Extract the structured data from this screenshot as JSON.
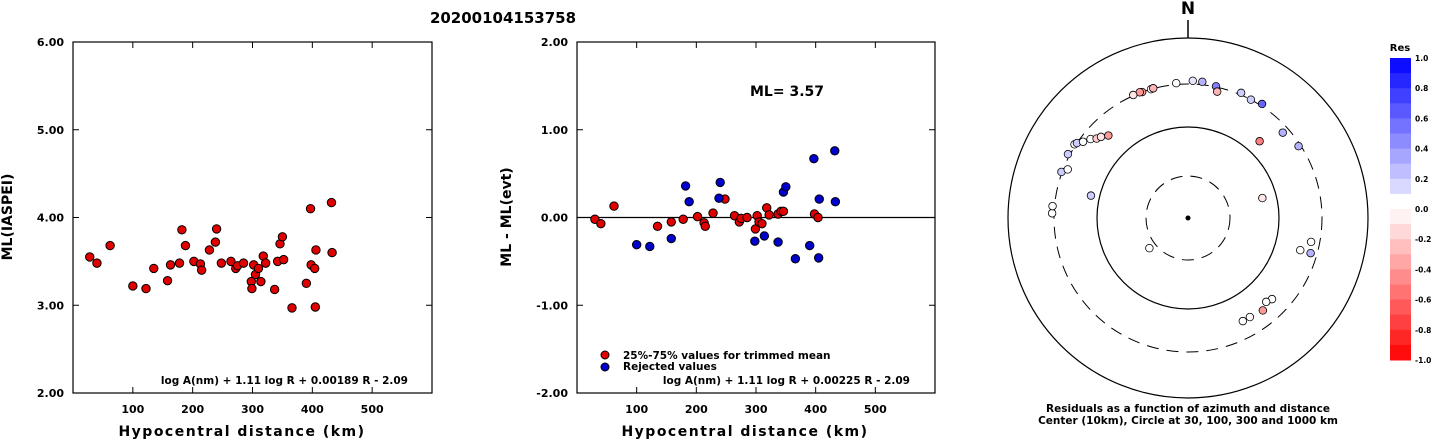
{
  "page_title": "20200104153758",
  "chart_data": [
    {
      "type": "scatter",
      "ylabel": "ML(IASPEI)",
      "xlabel": "Hypocentral distance (km)",
      "xlim": [
        0,
        600
      ],
      "ylim": [
        2.0,
        6.0
      ],
      "x_ticks": [
        "100",
        "200",
        "300",
        "400",
        "500"
      ],
      "y_ticks": [
        "2.00",
        "3.00",
        "4.00",
        "5.00",
        "6.00"
      ],
      "formula": "log A(nm) + 1.11 log R + 0.00189 R - 2.09",
      "series": [
        {
          "color": "#e00000",
          "points": [
            [
              28,
              3.55
            ],
            [
              40,
              3.48
            ],
            [
              62,
              3.68
            ],
            [
              100,
              3.22
            ],
            [
              122,
              3.19
            ],
            [
              135,
              3.42
            ],
            [
              158,
              3.28
            ],
            [
              163,
              3.46
            ],
            [
              178,
              3.48
            ],
            [
              182,
              3.86
            ],
            [
              188,
              3.68
            ],
            [
              202,
              3.5
            ],
            [
              213,
              3.47
            ],
            [
              215,
              3.4
            ],
            [
              228,
              3.63
            ],
            [
              238,
              3.72
            ],
            [
              240,
              3.87
            ],
            [
              248,
              3.48
            ],
            [
              264,
              3.5
            ],
            [
              272,
              3.42
            ],
            [
              275,
              3.45
            ],
            [
              285,
              3.48
            ],
            [
              298,
              3.27
            ],
            [
              299,
              3.19
            ],
            [
              302,
              3.46
            ],
            [
              305,
              3.35
            ],
            [
              310,
              3.42
            ],
            [
              314,
              3.27
            ],
            [
              318,
              3.56
            ],
            [
              322,
              3.48
            ],
            [
              337,
              3.18
            ],
            [
              342,
              3.5
            ],
            [
              346,
              3.7
            ],
            [
              350,
              3.78
            ],
            [
              352,
              3.52
            ],
            [
              366,
              2.97
            ],
            [
              390,
              3.25
            ],
            [
              397,
              4.1
            ],
            [
              398,
              3.46
            ],
            [
              404,
              3.42
            ],
            [
              405,
              2.98
            ],
            [
              406,
              3.63
            ],
            [
              432,
              4.17
            ],
            [
              433,
              3.6
            ]
          ]
        }
      ]
    },
    {
      "type": "scatter",
      "ylabel": "ML - ML(evt)",
      "xlabel": "Hypocentral distance (km)",
      "xlim": [
        0,
        600
      ],
      "ylim": [
        -2.0,
        2.0
      ],
      "x_ticks": [
        "100",
        "200",
        "300",
        "400",
        "500"
      ],
      "y_ticks": [
        "-2.00",
        "-1.00",
        "0.00",
        "1.00",
        "2.00"
      ],
      "hline": 0.0,
      "annotation": "ML= 3.57",
      "formula": "log A(nm) + 1.11 log R + 0.00225 R - 2.09",
      "series": [
        {
          "name": "25%-75% values for trimmed mean",
          "color": "#e00000",
          "points": [
            [
              30,
              -0.02
            ],
            [
              40,
              -0.07
            ],
            [
              62,
              0.13
            ],
            [
              135,
              -0.1
            ],
            [
              158,
              -0.05
            ],
            [
              178,
              -0.02
            ],
            [
              202,
              0.01
            ],
            [
              213,
              -0.06
            ],
            [
              215,
              -0.1
            ],
            [
              228,
              0.05
            ],
            [
              248,
              0.21
            ],
            [
              264,
              0.02
            ],
            [
              272,
              -0.05
            ],
            [
              275,
              -0.01
            ],
            [
              285,
              0.0
            ],
            [
              299,
              -0.13
            ],
            [
              302,
              0.02
            ],
            [
              305,
              -0.05
            ],
            [
              310,
              -0.07
            ],
            [
              318,
              0.11
            ],
            [
              322,
              0.03
            ],
            [
              337,
              0.04
            ],
            [
              342,
              0.07
            ],
            [
              346,
              0.07
            ],
            [
              398,
              0.04
            ],
            [
              404,
              0.0
            ]
          ]
        },
        {
          "name": "Rejected values",
          "color": "#0000cc",
          "points": [
            [
              100,
              -0.31
            ],
            [
              122,
              -0.33
            ],
            [
              158,
              -0.24
            ],
            [
              182,
              0.36
            ],
            [
              188,
              0.18
            ],
            [
              238,
              0.22
            ],
            [
              240,
              0.4
            ],
            [
              298,
              -0.27
            ],
            [
              314,
              -0.21
            ],
            [
              337,
              -0.28
            ],
            [
              346,
              0.29
            ],
            [
              350,
              0.35
            ],
            [
              366,
              -0.47
            ],
            [
              390,
              -0.32
            ],
            [
              397,
              0.67
            ],
            [
              405,
              -0.46
            ],
            [
              406,
              0.21
            ],
            [
              432,
              0.76
            ],
            [
              433,
              0.18
            ]
          ]
        }
      ]
    }
  ],
  "residual_map": {
    "north_label": "N",
    "caption_line1": "Residuals as a function of azimuth and distance",
    "caption_line2": "Center (10km), Circle at 30, 100, 300 and 1000 km",
    "legend_title": "Res",
    "legend_ticks": [
      "1.0",
      "0.8",
      "0.6",
      "0.4",
      "0.2",
      "0.0",
      "-0.2",
      "-0.4",
      "-0.6",
      "-0.8",
      "-1.0"
    ],
    "stations": [
      {
        "az": 344,
        "dist": 300,
        "res": 0.0
      },
      {
        "az": 345,
        "dist": 305,
        "res": -0.3
      },
      {
        "az": 340,
        "dist": 300,
        "res": -0.4
      },
      {
        "az": 339,
        "dist": 310,
        "res": -0.4
      },
      {
        "az": 336,
        "dist": 310,
        "res": -0.1
      },
      {
        "az": 355,
        "dist": 320,
        "res": 0.0
      },
      {
        "az": 2,
        "dist": 350,
        "res": 0.1
      },
      {
        "az": 6,
        "dist": 345,
        "res": 0.3
      },
      {
        "az": 12,
        "dist": 310,
        "res": 0.5
      },
      {
        "az": 13,
        "dist": 280,
        "res": -0.3
      },
      {
        "az": 23,
        "dist": 330,
        "res": 0.2
      },
      {
        "az": 28,
        "dist": 300,
        "res": 0.2
      },
      {
        "az": 33,
        "dist": 330,
        "res": 0.6
      },
      {
        "az": 43,
        "dist": 165,
        "res": -0.5
      },
      {
        "az": 48,
        "dist": 270,
        "res": 0.3
      },
      {
        "az": 57,
        "dist": 290,
        "res": 0.3
      },
      {
        "az": 75,
        "dist": 80,
        "res": -0.1
      },
      {
        "az": 106,
        "dist": 220,
        "res": 0.0
      },
      {
        "az": 101,
        "dist": 260,
        "res": 0.0
      },
      {
        "az": 106,
        "dist": 270,
        "res": 0.3
      },
      {
        "az": 134,
        "dist": 220,
        "res": 0.0
      },
      {
        "az": 137,
        "dist": 210,
        "res": 0.0
      },
      {
        "az": 141,
        "dist": 230,
        "res": -0.4
      },
      {
        "az": 148,
        "dist": 220,
        "res": 0.0
      },
      {
        "az": 152,
        "dist": 220,
        "res": 0.0
      },
      {
        "az": 232,
        "dist": 40,
        "res": 0.0
      },
      {
        "az": 283,
        "dist": 140,
        "res": 0.2
      },
      {
        "az": 272,
        "dist": 330,
        "res": 0.0
      },
      {
        "az": 275,
        "dist": 330,
        "res": 0.0
      },
      {
        "az": 290,
        "dist": 310,
        "res": 0.2
      },
      {
        "az": 292,
        "dist": 280,
        "res": 0.0
      },
      {
        "az": 298,
        "dist": 330,
        "res": 0.2
      },
      {
        "az": 303,
        "dist": 320,
        "res": 0.0
      },
      {
        "az": 304,
        "dist": 300,
        "res": 0.2
      },
      {
        "az": 306,
        "dist": 280,
        "res": 0.0
      },
      {
        "az": 309,
        "dist": 260,
        "res": 0.0
      },
      {
        "az": 311,
        "dist": 240,
        "res": -0.2
      },
      {
        "az": 313,
        "dist": 230,
        "res": -0.1
      },
      {
        "az": 316,
        "dist": 210,
        "res": -0.4
      }
    ]
  }
}
